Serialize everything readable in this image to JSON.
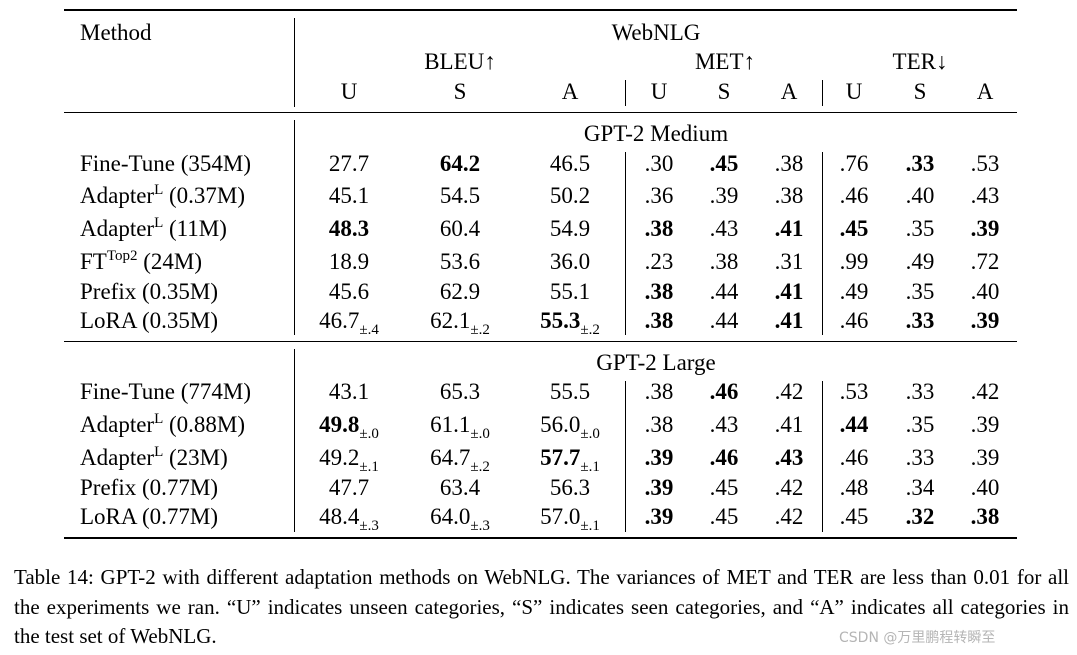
{
  "table": {
    "method_header": "Method",
    "dataset_header": "WebNLG",
    "metrics": [
      {
        "label": "BLEU",
        "arrow": "↑"
      },
      {
        "label": "MET",
        "arrow": "↑"
      },
      {
        "label": "TER",
        "arrow": "↓"
      }
    ],
    "sub_headers": [
      "U",
      "S",
      "A",
      "U",
      "S",
      "A",
      "U",
      "S",
      "A"
    ],
    "sections": [
      {
        "title": "GPT-2 Medium",
        "rows": [
          {
            "method": "Fine-Tune",
            "sup": "",
            "params": "(354M)",
            "cells": [
              {
                "v": "27.7"
              },
              {
                "v": "64.2",
                "b": 1
              },
              {
                "v": "46.5"
              },
              {
                "v": ".30"
              },
              {
                "v": ".45",
                "b": 1
              },
              {
                "v": ".38"
              },
              {
                "v": ".76"
              },
              {
                "v": ".33",
                "b": 1
              },
              {
                "v": ".53"
              }
            ]
          },
          {
            "method": "Adapter",
            "sup": "L",
            "params": "(0.37M)",
            "cells": [
              {
                "v": "45.1"
              },
              {
                "v": "54.5"
              },
              {
                "v": "50.2"
              },
              {
                "v": ".36"
              },
              {
                "v": ".39"
              },
              {
                "v": ".38"
              },
              {
                "v": ".46"
              },
              {
                "v": ".40"
              },
              {
                "v": ".43"
              }
            ]
          },
          {
            "method": "Adapter",
            "sup": "L",
            "params": "(11M)",
            "cells": [
              {
                "v": "48.3",
                "b": 1
              },
              {
                "v": "60.4"
              },
              {
                "v": "54.9"
              },
              {
                "v": ".38",
                "b": 1
              },
              {
                "v": ".43"
              },
              {
                "v": ".41",
                "b": 1
              },
              {
                "v": ".45",
                "b": 1
              },
              {
                "v": ".35"
              },
              {
                "v": ".39",
                "b": 1
              }
            ]
          },
          {
            "method": "FT",
            "sup": "Top2",
            "params": "(24M)",
            "cells": [
              {
                "v": "18.9"
              },
              {
                "v": "53.6"
              },
              {
                "v": "36.0"
              },
              {
                "v": ".23"
              },
              {
                "v": ".38"
              },
              {
                "v": ".31"
              },
              {
                "v": ".99"
              },
              {
                "v": ".49"
              },
              {
                "v": ".72"
              }
            ]
          },
          {
            "method": "Prefix",
            "sup": "",
            "params": "(0.35M)",
            "cells": [
              {
                "v": "45.6"
              },
              {
                "v": "62.9"
              },
              {
                "v": "55.1"
              },
              {
                "v": ".38",
                "b": 1
              },
              {
                "v": ".44"
              },
              {
                "v": ".41",
                "b": 1
              },
              {
                "v": ".49"
              },
              {
                "v": ".35"
              },
              {
                "v": ".40"
              }
            ]
          },
          {
            "method": "LoRA",
            "sup": "",
            "params": "(0.35M)",
            "cells": [
              {
                "v": "46.7",
                "s": "±.4"
              },
              {
                "v": "62.1",
                "s": "±.2"
              },
              {
                "v": "55.3",
                "s": "±.2",
                "b": 1
              },
              {
                "v": ".38",
                "b": 1
              },
              {
                "v": ".44"
              },
              {
                "v": ".41",
                "b": 1
              },
              {
                "v": ".46"
              },
              {
                "v": ".33",
                "b": 1
              },
              {
                "v": ".39",
                "b": 1
              }
            ]
          }
        ]
      },
      {
        "title": "GPT-2 Large",
        "rows": [
          {
            "method": "Fine-Tune",
            "sup": "",
            "params": "(774M)",
            "cells": [
              {
                "v": "43.1"
              },
              {
                "v": "65.3"
              },
              {
                "v": "55.5"
              },
              {
                "v": ".38"
              },
              {
                "v": ".46",
                "b": 1
              },
              {
                "v": ".42"
              },
              {
                "v": ".53"
              },
              {
                "v": ".33"
              },
              {
                "v": ".42"
              }
            ]
          },
          {
            "method": "Adapter",
            "sup": "L",
            "params": "(0.88M)",
            "cells": [
              {
                "v": "49.8",
                "s": "±.0",
                "b": 1
              },
              {
                "v": "61.1",
                "s": "±.0"
              },
              {
                "v": "56.0",
                "s": "±.0"
              },
              {
                "v": ".38"
              },
              {
                "v": ".43"
              },
              {
                "v": ".41"
              },
              {
                "v": ".44",
                "b": 1
              },
              {
                "v": ".35"
              },
              {
                "v": ".39"
              }
            ]
          },
          {
            "method": "Adapter",
            "sup": "L",
            "params": "(23M)",
            "cells": [
              {
                "v": "49.2",
                "s": "±.1"
              },
              {
                "v": "64.7",
                "s": "±.2"
              },
              {
                "v": "57.7",
                "s": "±.1",
                "b": 1
              },
              {
                "v": ".39",
                "b": 1
              },
              {
                "v": ".46",
                "b": 1
              },
              {
                "v": ".43",
                "b": 1
              },
              {
                "v": ".46"
              },
              {
                "v": ".33"
              },
              {
                "v": ".39"
              }
            ]
          },
          {
            "method": "Prefix",
            "sup": "",
            "params": "(0.77M)",
            "cells": [
              {
                "v": "47.7"
              },
              {
                "v": "63.4"
              },
              {
                "v": "56.3"
              },
              {
                "v": ".39",
                "b": 1
              },
              {
                "v": ".45"
              },
              {
                "v": ".42"
              },
              {
                "v": ".48"
              },
              {
                "v": ".34"
              },
              {
                "v": ".40"
              }
            ]
          },
          {
            "method": "LoRA",
            "sup": "",
            "params": "(0.77M)",
            "cells": [
              {
                "v": "48.4",
                "s": "±.3"
              },
              {
                "v": "64.0",
                "s": "±.3"
              },
              {
                "v": "57.0",
                "s": "±.1"
              },
              {
                "v": ".39",
                "b": 1
              },
              {
                "v": ".45"
              },
              {
                "v": ".42"
              },
              {
                "v": ".45"
              },
              {
                "v": ".32",
                "b": 1
              },
              {
                "v": ".38",
                "b": 1
              }
            ]
          }
        ]
      }
    ]
  },
  "caption": "Table 14: GPT-2 with different adaptation methods on WebNLG. The variances of MET and TER are less than 0.01 for all the experiments we ran. “U” indicates unseen categories, “S” indicates seen categories, and “A” indicates all categories in the test set of WebNLG.",
  "watermark": "CSDN @万里鹏程转瞬至"
}
